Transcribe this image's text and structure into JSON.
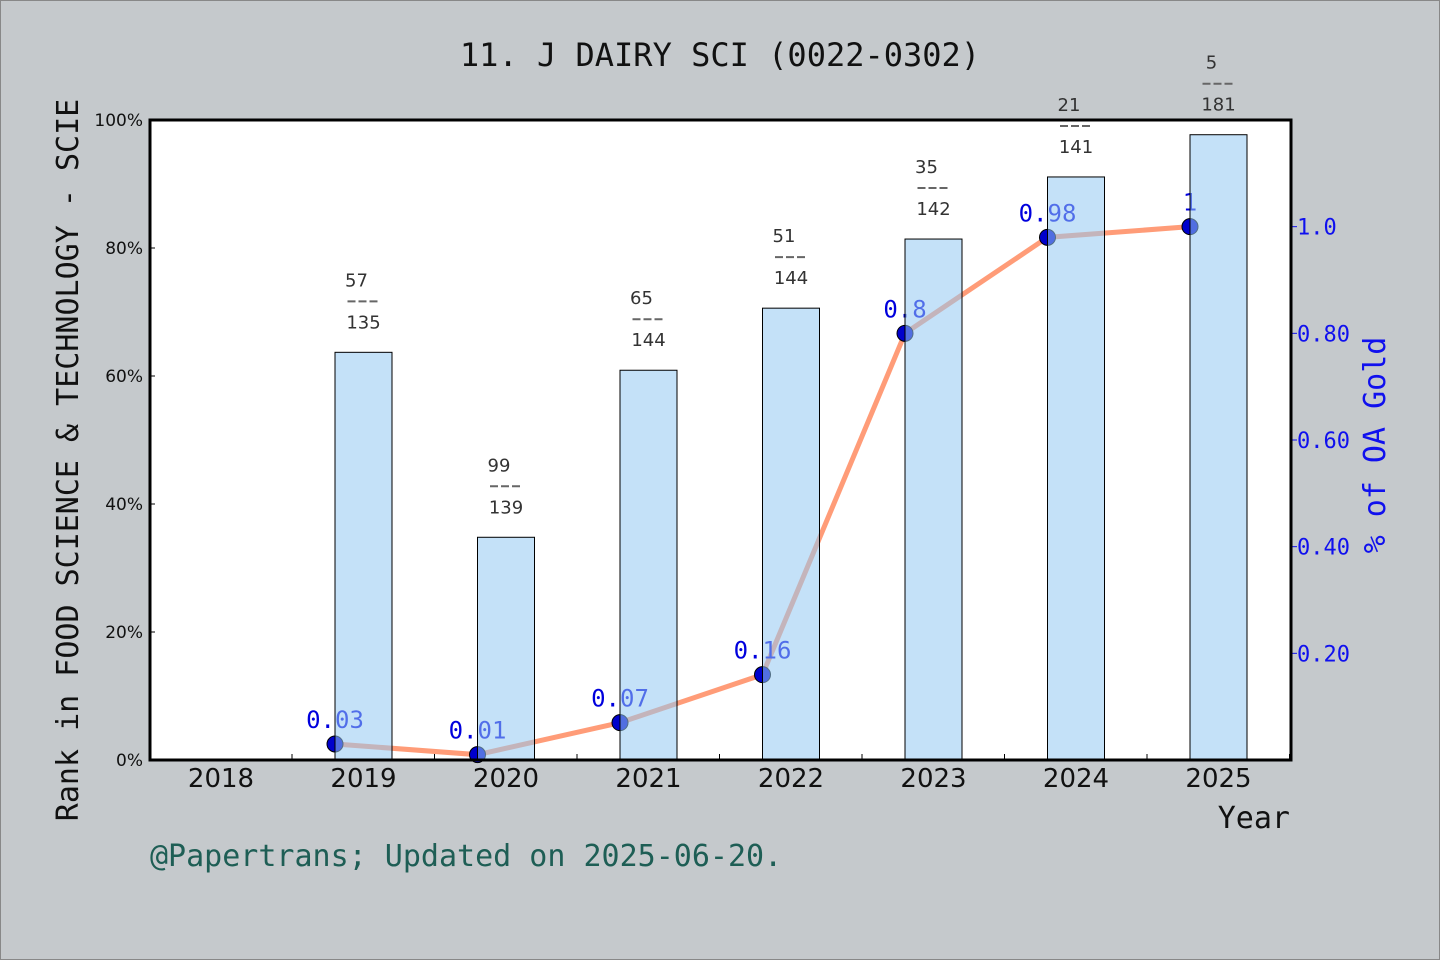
{
  "chart_data": {
    "type": "bar+line",
    "title": "11. J DAIRY SCI (0022-0302)",
    "xlabel": "Year",
    "ylabel": "Rank in FOOD SCIENCE & TECHNOLOGY - SCIE",
    "y2label": "% of OA Gold",
    "categories": [
      "2018",
      "2019",
      "2020",
      "2021",
      "2022",
      "2023",
      "2024",
      "2025"
    ],
    "ylim": [
      0,
      100
    ],
    "y_ticks": [
      "0%",
      "20%",
      "40%",
      "60%",
      "80%",
      "100%"
    ],
    "y2lim": [
      0,
      1.2
    ],
    "y2_ticks": [
      "0.20",
      "0.40",
      "0.60",
      "0.80",
      "1.0"
    ],
    "bars": {
      "values_percent": [
        null,
        63.7,
        34.8,
        60.9,
        70.6,
        81.4,
        91.1,
        97.7
      ],
      "rank_labels": [
        null,
        [
          "57",
          "135"
        ],
        [
          "99",
          "139"
        ],
        [
          "65",
          "144"
        ],
        [
          "51",
          "144"
        ],
        [
          "35",
          "142"
        ],
        [
          "21",
          "141"
        ],
        [
          "5",
          "181"
        ]
      ],
      "color": "#c5e0f7"
    },
    "line": {
      "values": [
        null,
        0.03,
        0.01,
        0.07,
        0.16,
        0.8,
        0.98,
        1
      ],
      "labels": [
        null,
        "0.03",
        "0.01",
        "0.07",
        "0.16",
        "0.8",
        "0.98",
        "1"
      ],
      "color": "#ff9c78",
      "marker_color": "#0000cc"
    },
    "legend": "none",
    "grid": false
  },
  "footer": "@Papertrans; Updated on 2025-06-20."
}
